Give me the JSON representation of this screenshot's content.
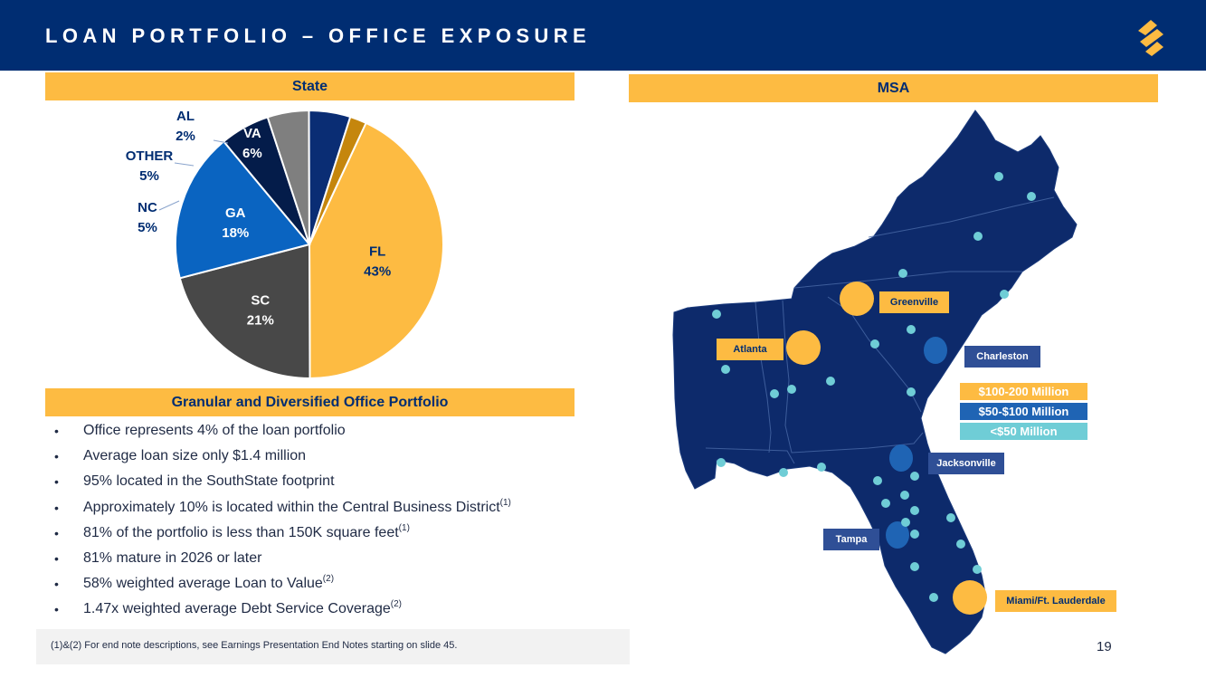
{
  "header": {
    "title": "LOAN PORTFOLIO – OFFICE EXPOSURE",
    "logo_icon": "southstate-logo-icon",
    "bar_color": "#002d72",
    "accent_color": "#fdbb42"
  },
  "sections": {
    "state_title": "State",
    "msa_title": "MSA",
    "granular_title": "Granular and Diversified Office Portfolio"
  },
  "chart_data": {
    "type": "pie",
    "title": "State",
    "start_angle_deg": 25,
    "direction": "clockwise",
    "slices": [
      {
        "label": "FL",
        "value": 43,
        "display": "43%",
        "color": "#fdbb42",
        "label_color": "#002d72"
      },
      {
        "label": "SC",
        "value": 21,
        "display": "21%",
        "color": "#484848",
        "label_color": "#ffffff"
      },
      {
        "label": "GA",
        "value": 18,
        "display": "18%",
        "color": "#0a64c1",
        "label_color": "#ffffff"
      },
      {
        "label": "VA",
        "value": 6,
        "display": "6%",
        "color": "#041c4a",
        "label_color": "#ffffff"
      },
      {
        "label": "NC",
        "value": 5,
        "display": "5%",
        "color": "#7f7f7f",
        "label_color": "#002d72"
      },
      {
        "label": "OTHER",
        "value": 5,
        "display": "5%",
        "color": "#0a2d74",
        "label_color": "#002d72"
      },
      {
        "label": "AL",
        "value": 2,
        "display": "2%",
        "color": "#c5860d",
        "label_color": "#002d72"
      }
    ]
  },
  "bullets": [
    {
      "text": "Office represents 4% of the loan portfolio",
      "sup": ""
    },
    {
      "text": "Average loan size only $1.4 million",
      "sup": ""
    },
    {
      "text": "95% located in the SouthState footprint",
      "sup": ""
    },
    {
      "text": "Approximately 10% is located within the Central Business District",
      "sup": "(1)"
    },
    {
      "text": "81% of the portfolio is less than 150K square feet",
      "sup": "(1)"
    },
    {
      "text": "81% mature in 2026 or later",
      "sup": ""
    },
    {
      "text": "58% weighted average Loan to Value",
      "sup": "(2)"
    },
    {
      "text": "1.47x weighted average Debt Service Coverage",
      "sup": "(2)"
    }
  ],
  "footnote": "(1)&(2)  For end note descriptions, see Earnings Presentation End Notes starting on slide 45.",
  "page_number": "19",
  "map": {
    "region_color": "#0d2a6b",
    "border_color": "#4a6aa8",
    "legend": [
      {
        "label": "$100-200 Million",
        "color": "#fdbb42"
      },
      {
        "label": "$50-$100 Million",
        "color": "#1f64b4"
      },
      {
        "label": "<$50 Million",
        "color": "#6fcdd6"
      }
    ],
    "labels": {
      "greenville": "Greenville",
      "atlanta": "Atlanta",
      "charleston": "Charleston",
      "jacksonville": "Jacksonville",
      "tampa": "Tampa",
      "miami": "Miami/Ft. Lauderdale"
    },
    "markets": [
      {
        "name": "Greenville",
        "tier": "$100-200 Million"
      },
      {
        "name": "Atlanta",
        "tier": "$100-200 Million"
      },
      {
        "name": "Miami/Ft. Lauderdale",
        "tier": "$100-200 Million"
      },
      {
        "name": "Charleston",
        "tier": "$50-$100 Million"
      },
      {
        "name": "Jacksonville",
        "tier": "$50-$100 Million"
      },
      {
        "name": "Tampa",
        "tier": "$50-$100 Million"
      }
    ]
  }
}
